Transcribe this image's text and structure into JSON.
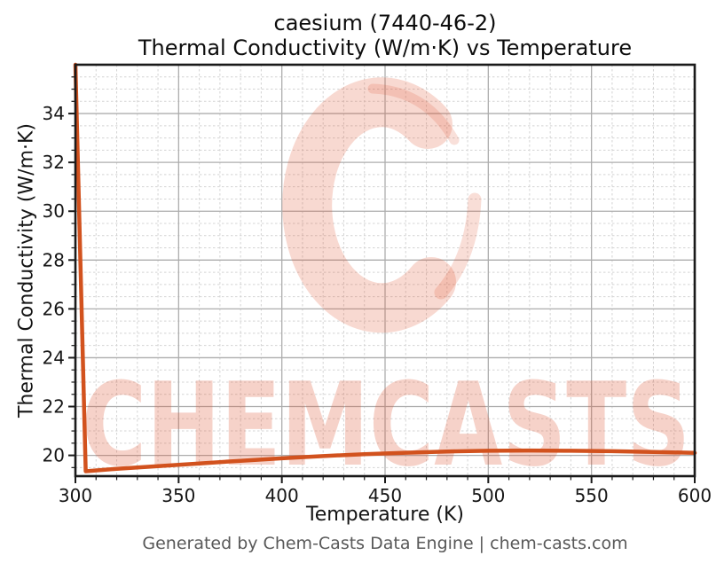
{
  "chart_data": {
    "type": "line",
    "title": "caesium (7440-46-2)",
    "subtitle": "Thermal Conductivity (W/m·K) vs Temperature",
    "xlabel": "Temperature (K)",
    "ylabel": "Thermal Conductivity (W/m·K)",
    "xlim": [
      300,
      600
    ],
    "ylim": [
      19.15,
      36.0
    ],
    "xticks": [
      300,
      350,
      400,
      450,
      500,
      550,
      600
    ],
    "yticks": [
      20,
      22,
      24,
      26,
      28,
      30,
      32,
      34
    ],
    "x_minor_step": 10,
    "y_minor_step": 0.5,
    "grid": true,
    "legend": false,
    "series": [
      {
        "name": "thermal-conductivity",
        "color": "#d2521e",
        "line_width": 4.5,
        "points": [
          [
            300,
            36.0
          ],
          [
            305,
            19.35
          ],
          [
            320,
            19.45
          ],
          [
            340,
            19.56
          ],
          [
            360,
            19.67
          ],
          [
            380,
            19.78
          ],
          [
            400,
            19.88
          ],
          [
            420,
            19.97
          ],
          [
            440,
            20.05
          ],
          [
            460,
            20.11
          ],
          [
            480,
            20.16
          ],
          [
            500,
            20.19
          ],
          [
            520,
            20.2
          ],
          [
            540,
            20.19
          ],
          [
            560,
            20.17
          ],
          [
            580,
            20.14
          ],
          [
            600,
            20.1
          ]
        ]
      }
    ]
  },
  "watermark": {
    "text": "CHEMCASTS",
    "icon": "chemcasts-c-swirl-logo",
    "color": "#de502d",
    "text_opacity": 0.26,
    "logo_opacity": 0.22
  },
  "footer": {
    "text": "Generated by Chem-Casts Data Engine | chem-casts.com"
  },
  "style": {
    "spine_color": "#1a1a1a",
    "major_grid_color": "#adadad",
    "minor_grid_color": "#d4d4d4",
    "tick_color": "#1a1a1a",
    "tick_label_color": "#161616"
  }
}
